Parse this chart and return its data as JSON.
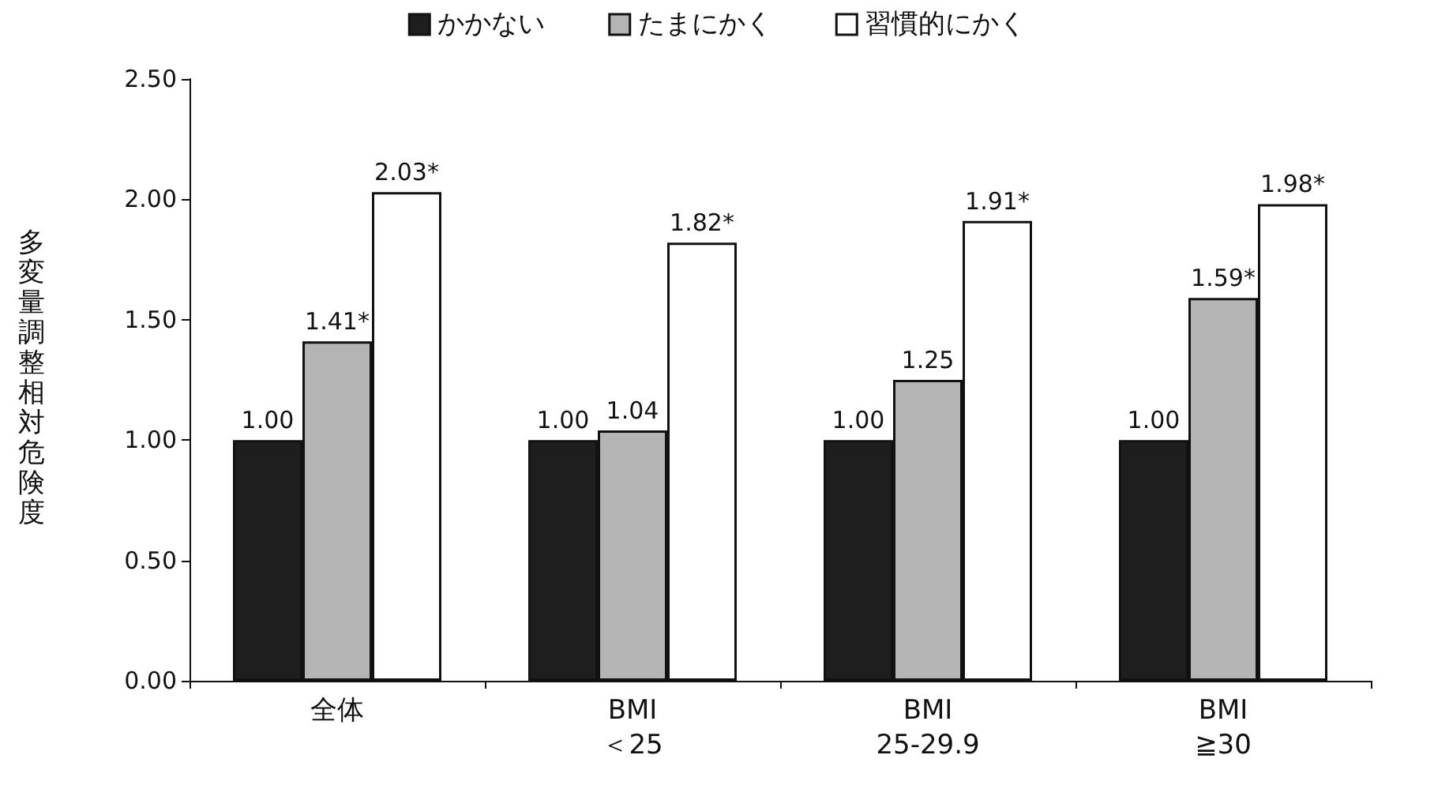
{
  "chart_data": {
    "type": "bar",
    "ylabel": "多変量調整相対危険度",
    "categories": [
      "全体",
      "BMI\n＜25",
      "BMI\n25-29.9",
      "BMI\n≧30"
    ],
    "series": [
      {
        "name": "かかない",
        "color": "#1e1e1e",
        "values": [
          1.0,
          1.0,
          1.0,
          1.0
        ],
        "value_labels": [
          "1.00",
          "1.00",
          "1.00",
          "1.00"
        ]
      },
      {
        "name": "たまにかく",
        "color": "#b4b4b4",
        "values": [
          1.41,
          1.04,
          1.25,
          1.59
        ],
        "value_labels": [
          "1.41*",
          "1.04",
          "1.25",
          "1.59*"
        ]
      },
      {
        "name": "習慣的にかく",
        "color": "#ffffff",
        "values": [
          2.03,
          1.82,
          1.91,
          1.98
        ],
        "value_labels": [
          "2.03*",
          "1.82*",
          "1.91*",
          "1.98*"
        ]
      }
    ],
    "ylim": [
      0,
      2.5
    ],
    "yticks": [
      {
        "value": 0,
        "label": "0.00"
      },
      {
        "value": 0.5,
        "label": "0.50"
      },
      {
        "value": 1,
        "label": "1.00"
      },
      {
        "value": 1.5,
        "label": "1.50"
      },
      {
        "value": 2,
        "label": "2.00"
      },
      {
        "value": 2.5,
        "label": "2.50"
      }
    ],
    "grid": false,
    "legend": "top"
  }
}
